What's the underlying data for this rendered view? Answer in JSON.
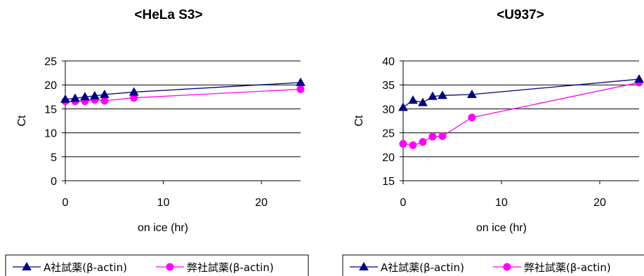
{
  "chart_data": [
    {
      "type": "line",
      "title": "<HeLa S3>",
      "xlabel": "on ice (hr)",
      "ylabel": "Ct",
      "xlim": [
        0,
        24
      ],
      "ylim": [
        0,
        25
      ],
      "xticks": [
        0,
        10,
        20
      ],
      "yticks": [
        0,
        5,
        10,
        15,
        20,
        25
      ],
      "grid": "horizontal",
      "legend": "bottom",
      "series": [
        {
          "name": "A社試薬(β-actin)",
          "color": "#000080",
          "marker": "triangle",
          "x": [
            0,
            1,
            2,
            3,
            4,
            7,
            24
          ],
          "y": [
            17.0,
            17.2,
            17.5,
            17.7,
            18.0,
            18.5,
            20.5
          ]
        },
        {
          "name": "弊社試薬(β-actin)",
          "color": "#ff00ff",
          "marker": "circle",
          "x": [
            0,
            1,
            2,
            3,
            4,
            7,
            24
          ],
          "y": [
            16.6,
            16.6,
            16.6,
            16.9,
            16.7,
            17.3,
            19.1
          ]
        }
      ]
    },
    {
      "type": "line",
      "title": "<U937>",
      "xlabel": "on ice (hr)",
      "ylabel": "Ct",
      "xlim": [
        0,
        24
      ],
      "ylim": [
        15,
        40
      ],
      "xticks": [
        0,
        10,
        20
      ],
      "yticks": [
        15,
        20,
        25,
        30,
        35,
        40
      ],
      "grid": "horizontal",
      "legend": "bottom",
      "series": [
        {
          "name": "A社試薬(β-actin)",
          "color": "#000080",
          "marker": "triangle",
          "x": [
            0,
            1,
            2,
            3,
            4,
            7,
            24
          ],
          "y": [
            30.3,
            31.8,
            31.3,
            32.6,
            32.8,
            33.0,
            36.2
          ]
        },
        {
          "name": "弊社試薬(β-actin)",
          "color": "#ff00ff",
          "marker": "circle",
          "x": [
            0,
            1,
            2,
            3,
            4,
            7,
            24
          ],
          "y": [
            22.7,
            22.4,
            23.1,
            24.2,
            24.3,
            28.2,
            35.5
          ]
        }
      ]
    }
  ]
}
